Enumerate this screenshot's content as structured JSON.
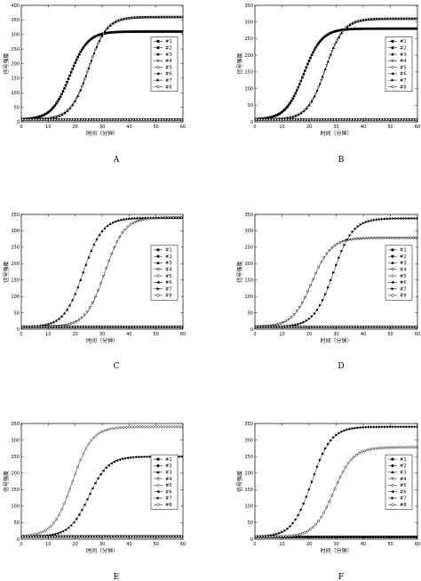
{
  "chart_data": [
    {
      "type": "line",
      "panel_label": "A",
      "xlabel": "时间（分钟）",
      "ylabel": "信号强度",
      "xlim": [
        0,
        60
      ],
      "ylim": [
        0,
        400
      ],
      "xticks": [
        0,
        10,
        20,
        30,
        40,
        50,
        60
      ],
      "yticks": [
        0,
        50,
        100,
        150,
        200,
        250,
        300,
        350,
        400
      ],
      "grid": false,
      "legend_position": "right",
      "legend": [
        "#1",
        "#2",
        "#3",
        "#4",
        "#5",
        "#6",
        "#7",
        "#8"
      ],
      "series": [
        {
          "name": "#1",
          "marker": "square-filled",
          "curve": {
            "base": 8,
            "plateau": 310,
            "midpoint": 18,
            "rate": 0.3
          }
        },
        {
          "name": "#2",
          "marker": "circle-filled",
          "curve": {
            "base": 8,
            "plateau": 310,
            "midpoint": 18,
            "rate": 0.3
          }
        },
        {
          "name": "#3",
          "marker": "triangle-up-filled",
          "curve": {
            "base": 8,
            "plateau": 360,
            "midpoint": 25,
            "rate": 0.3
          }
        },
        {
          "name": "#4",
          "marker": "triangle-down-open",
          "curve": {
            "base": 8,
            "plateau": 360,
            "midpoint": 25,
            "rate": 0.3
          }
        },
        {
          "name": "#5",
          "marker": "diamond-open",
          "curve": {
            "base": 8,
            "plateau": 8,
            "midpoint": 30,
            "rate": 0.3
          }
        },
        {
          "name": "#6",
          "marker": "triangle-left-filled",
          "curve": {
            "base": 8,
            "plateau": 8,
            "midpoint": 30,
            "rate": 0.3
          }
        },
        {
          "name": "#7",
          "marker": "triangle-right-filled",
          "curve": {
            "base": 8,
            "plateau": 8,
            "midpoint": 30,
            "rate": 0.3
          }
        },
        {
          "name": "#8",
          "marker": "hexagon-open",
          "curve": {
            "base": 8,
            "plateau": 8,
            "midpoint": 30,
            "rate": 0.3
          }
        }
      ]
    },
    {
      "type": "line",
      "panel_label": "B",
      "xlabel": "时间（分钟）",
      "ylabel": "信号强度",
      "xlim": [
        0,
        60
      ],
      "ylim": [
        0,
        350
      ],
      "xticks": [
        0,
        10,
        20,
        30,
        40,
        50,
        60
      ],
      "yticks": [
        0,
        50,
        100,
        150,
        200,
        250,
        300,
        350
      ],
      "grid": false,
      "legend_position": "right",
      "legend": [
        "#1",
        "#2",
        "#3",
        "#4",
        "#5",
        "#6",
        "#7",
        "#8"
      ],
      "series": [
        {
          "name": "#1",
          "marker": "square-filled",
          "curve": {
            "base": 7,
            "plateau": 280,
            "midpoint": 18,
            "rate": 0.3
          }
        },
        {
          "name": "#2",
          "marker": "circle-filled",
          "curve": {
            "base": 7,
            "plateau": 280,
            "midpoint": 18,
            "rate": 0.3
          }
        },
        {
          "name": "#3",
          "marker": "triangle-up-filled",
          "curve": {
            "base": 7,
            "plateau": 310,
            "midpoint": 26,
            "rate": 0.3
          }
        },
        {
          "name": "#4",
          "marker": "triangle-down-open",
          "curve": {
            "base": 7,
            "plateau": 310,
            "midpoint": 26,
            "rate": 0.3
          }
        },
        {
          "name": "#5",
          "marker": "diamond-open",
          "curve": {
            "base": 7,
            "plateau": 7,
            "midpoint": 30,
            "rate": 0.3
          }
        },
        {
          "name": "#6",
          "marker": "triangle-left-filled",
          "curve": {
            "base": 7,
            "plateau": 7,
            "midpoint": 30,
            "rate": 0.3
          }
        },
        {
          "name": "#7",
          "marker": "triangle-right-filled",
          "curve": {
            "base": 7,
            "plateau": 7,
            "midpoint": 30,
            "rate": 0.3
          }
        },
        {
          "name": "#8",
          "marker": "hexagon-open",
          "curve": {
            "base": 7,
            "plateau": 7,
            "midpoint": 30,
            "rate": 0.3
          }
        }
      ]
    },
    {
      "type": "line",
      "panel_label": "C",
      "xlabel": "时间（分钟）",
      "ylabel": "信号强度",
      "xlim": [
        0,
        60
      ],
      "ylim": [
        0,
        350
      ],
      "xticks": [
        0,
        10,
        20,
        30,
        40,
        50,
        60
      ],
      "yticks": [
        0,
        50,
        100,
        150,
        200,
        250,
        300,
        350
      ],
      "grid": false,
      "legend_position": "right",
      "legend": [
        "#1",
        "#2",
        "#3",
        "#4",
        "#5",
        "#6",
        "#7",
        "#8"
      ],
      "series": [
        {
          "name": "#1",
          "marker": "square-filled",
          "curve": {
            "base": 7,
            "plateau": 7,
            "midpoint": 30,
            "rate": 0.3
          }
        },
        {
          "name": "#2",
          "marker": "circle-filled",
          "curve": {
            "base": 7,
            "plateau": 7,
            "midpoint": 30,
            "rate": 0.3
          }
        },
        {
          "name": "#3",
          "marker": "triangle-up-filled",
          "curve": {
            "base": 7,
            "plateau": 340,
            "midpoint": 23,
            "rate": 0.28
          }
        },
        {
          "name": "#4",
          "marker": "triangle-down-open",
          "curve": {
            "base": 7,
            "plateau": 340,
            "midpoint": 31,
            "rate": 0.28
          }
        },
        {
          "name": "#5",
          "marker": "diamond-open",
          "curve": {
            "base": 7,
            "plateau": 7,
            "midpoint": 30,
            "rate": 0.3
          }
        },
        {
          "name": "#6",
          "marker": "triangle-left-filled",
          "curve": {
            "base": 7,
            "plateau": 7,
            "midpoint": 30,
            "rate": 0.3
          }
        },
        {
          "name": "#7",
          "marker": "triangle-right-filled",
          "curve": {
            "base": 7,
            "plateau": 7,
            "midpoint": 30,
            "rate": 0.3
          }
        },
        {
          "name": "#8",
          "marker": "hexagon-open",
          "curve": {
            "base": 7,
            "plateau": 7,
            "midpoint": 30,
            "rate": 0.3
          }
        }
      ]
    },
    {
      "type": "line",
      "panel_label": "D",
      "xlabel": "时间（分钟）",
      "ylabel": "信号强度",
      "xlim": [
        0,
        60
      ],
      "ylim": [
        0,
        350
      ],
      "xticks": [
        0,
        10,
        20,
        30,
        40,
        50,
        60
      ],
      "yticks": [
        0,
        50,
        100,
        150,
        200,
        250,
        300,
        350
      ],
      "grid": false,
      "legend_position": "right",
      "legend": [
        "#1",
        "#2",
        "#3",
        "#4",
        "#5",
        "#6",
        "#7",
        "#8"
      ],
      "series": [
        {
          "name": "#1",
          "marker": "square-filled",
          "curve": {
            "base": 7,
            "plateau": 7,
            "midpoint": 30,
            "rate": 0.3
          }
        },
        {
          "name": "#2",
          "marker": "circle-filled",
          "curve": {
            "base": 7,
            "plateau": 7,
            "midpoint": 30,
            "rate": 0.3
          }
        },
        {
          "name": "#3",
          "marker": "triangle-up-filled",
          "curve": {
            "base": 7,
            "plateau": 7,
            "midpoint": 30,
            "rate": 0.3
          }
        },
        {
          "name": "#4",
          "marker": "triangle-down-open",
          "curve": {
            "base": 7,
            "plateau": 278,
            "midpoint": 21,
            "rate": 0.28
          }
        },
        {
          "name": "#5",
          "marker": "diamond-open",
          "curve": {
            "base": 7,
            "plateau": 7,
            "midpoint": 30,
            "rate": 0.3
          }
        },
        {
          "name": "#6",
          "marker": "triangle-left-filled",
          "curve": {
            "base": 7,
            "plateau": 7,
            "midpoint": 30,
            "rate": 0.3
          }
        },
        {
          "name": "#7",
          "marker": "triangle-right-filled",
          "curve": {
            "base": 7,
            "plateau": 338,
            "midpoint": 29,
            "rate": 0.28
          }
        },
        {
          "name": "#8",
          "marker": "hexagon-open",
          "curve": {
            "base": 7,
            "plateau": 7,
            "midpoint": 30,
            "rate": 0.3
          }
        }
      ]
    },
    {
      "type": "line",
      "panel_label": "E",
      "xlabel": "时间（分钟）",
      "ylabel": "信号强度",
      "xlim": [
        0,
        60
      ],
      "ylim": [
        0,
        350
      ],
      "xticks": [
        0,
        10,
        20,
        30,
        40,
        50,
        60
      ],
      "yticks": [
        0,
        50,
        100,
        150,
        200,
        250,
        300,
        350
      ],
      "grid": false,
      "legend_position": "right",
      "legend": [
        "#1",
        "#2",
        "#3",
        "#4",
        "#5",
        "#6",
        "#7",
        "#8"
      ],
      "series": [
        {
          "name": "#1",
          "marker": "square-filled",
          "curve": {
            "base": 8,
            "plateau": 8,
            "midpoint": 30,
            "rate": 0.3
          }
        },
        {
          "name": "#2",
          "marker": "circle-filled",
          "curve": {
            "base": 8,
            "plateau": 8,
            "midpoint": 30,
            "rate": 0.3
          }
        },
        {
          "name": "#3",
          "marker": "triangle-up-filled",
          "curve": {
            "base": 8,
            "plateau": 8,
            "midpoint": 30,
            "rate": 0.3
          }
        },
        {
          "name": "#4",
          "marker": "triangle-down-open",
          "curve": {
            "base": 8,
            "plateau": 8,
            "midpoint": 30,
            "rate": 0.3
          }
        },
        {
          "name": "#5",
          "marker": "diamond-open",
          "curve": {
            "base": 8,
            "plateau": 340,
            "midpoint": 19,
            "rate": 0.28
          }
        },
        {
          "name": "#6",
          "marker": "triangle-left-filled",
          "curve": {
            "base": 8,
            "plateau": 250,
            "midpoint": 25,
            "rate": 0.28
          }
        },
        {
          "name": "#7",
          "marker": "triangle-right-filled",
          "curve": {
            "base": 8,
            "plateau": 8,
            "midpoint": 30,
            "rate": 0.3
          }
        },
        {
          "name": "#8",
          "marker": "hexagon-open",
          "curve": {
            "base": 8,
            "plateau": 8,
            "midpoint": 30,
            "rate": 0.3
          }
        }
      ]
    },
    {
      "type": "line",
      "panel_label": "F",
      "xlabel": "时间（分钟）",
      "ylabel": "信号强度",
      "xlim": [
        0,
        60
      ],
      "ylim": [
        0,
        350
      ],
      "xticks": [
        0,
        10,
        20,
        30,
        40,
        50,
        60
      ],
      "yticks": [
        0,
        50,
        100,
        150,
        200,
        250,
        300,
        350
      ],
      "grid": false,
      "legend_position": "right",
      "legend": [
        "#1",
        "#2",
        "#3",
        "#4",
        "#5",
        "#6",
        "#7",
        "#8"
      ],
      "series": [
        {
          "name": "#1",
          "marker": "square-filled",
          "curve": {
            "base": 7,
            "plateau": 7,
            "midpoint": 30,
            "rate": 0.3
          }
        },
        {
          "name": "#2",
          "marker": "circle-filled",
          "curve": {
            "base": 7,
            "plateau": 7,
            "midpoint": 30,
            "rate": 0.3
          }
        },
        {
          "name": "#3",
          "marker": "triangle-up-filled",
          "curve": {
            "base": 7,
            "plateau": 7,
            "midpoint": 30,
            "rate": 0.3
          }
        },
        {
          "name": "#4",
          "marker": "triangle-down-open",
          "curve": {
            "base": 7,
            "plateau": 7,
            "midpoint": 30,
            "rate": 0.3
          }
        },
        {
          "name": "#5",
          "marker": "diamond-open",
          "curve": {
            "base": 7,
            "plateau": 7,
            "midpoint": 30,
            "rate": 0.3
          }
        },
        {
          "name": "#6",
          "marker": "triangle-left-filled",
          "curve": {
            "base": 7,
            "plateau": 7,
            "midpoint": 30,
            "rate": 0.3
          }
        },
        {
          "name": "#7",
          "marker": "triangle-right-filled",
          "curve": {
            "base": 7,
            "plateau": 340,
            "midpoint": 21,
            "rate": 0.28
          }
        },
        {
          "name": "#8",
          "marker": "hexagon-open",
          "curve": {
            "base": 7,
            "plateau": 278,
            "midpoint": 29,
            "rate": 0.28
          }
        }
      ]
    }
  ]
}
